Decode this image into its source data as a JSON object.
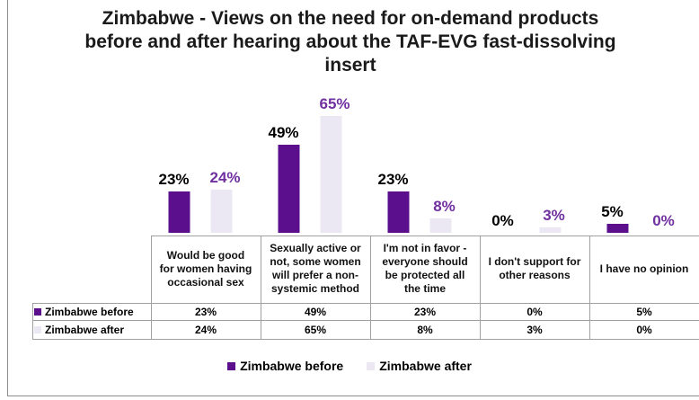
{
  "chart_data": {
    "type": "bar",
    "title_lines": [
      "Zimbabwe - Views on the need for on-demand products",
      "before and after hearing about the TAF-EVG fast-dissolving",
      "insert"
    ],
    "categories": [
      [
        "Would be good",
        "for women having",
        "occasional sex"
      ],
      [
        "Sexually active or",
        "not, some women",
        "will prefer a non-",
        "systemic method"
      ],
      [
        "I'm not in favor -",
        "everyone should",
        "be protected all",
        "the time"
      ],
      [
        "I don't support for",
        "other reasons"
      ],
      [
        "I have no opinion"
      ]
    ],
    "series": [
      {
        "name": "Zimbabwe before",
        "values": [
          23,
          49,
          23,
          0,
          5
        ],
        "labels": [
          "23%",
          "49%",
          "23%",
          "0%",
          "5%"
        ],
        "color": "#5b0f8c",
        "label_color": "#000000"
      },
      {
        "name": "Zimbabwe after",
        "values": [
          24,
          65,
          8,
          3,
          0
        ],
        "labels": [
          "24%",
          "65%",
          "8%",
          "3%",
          "0%"
        ],
        "color": "#ebe8f3",
        "label_color": "#7030a0"
      }
    ],
    "ylim": [
      0,
      100
    ],
    "legend_position": "bottom",
    "data_table": true
  }
}
